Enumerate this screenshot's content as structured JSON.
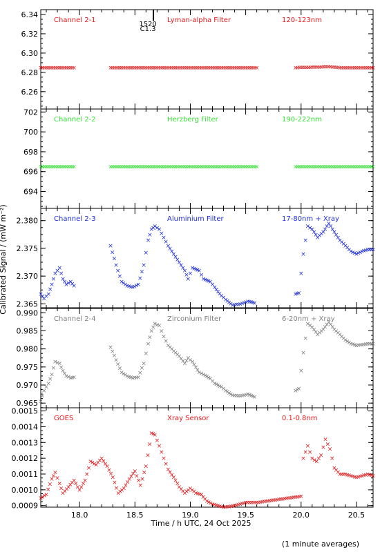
{
  "xlabel": "Time / h UTC, 24 Oct 2025",
  "ylabel": "Calibrated Signal / (mW m⁻²)",
  "footnote": "(1 minute averages)",
  "event_marker": {
    "x": 18.667,
    "label_top": "1520",
    "label_bottom": "C1.3"
  },
  "chart_data": [
    {
      "type": "scatter",
      "channel": "Channel 2-1",
      "filter": "Lyman-alpha Filter",
      "band": "120-123nm",
      "color": "#e31a1c",
      "xlim": [
        17.65,
        20.65
      ],
      "ylim": [
        6.242,
        6.345
      ],
      "yticks": [
        "6.26",
        "6.28",
        "6.30",
        "6.32",
        "6.34"
      ],
      "segments": [
        {
          "x": [
            17.65,
            17.95
          ],
          "y": [
            6.285,
            6.285
          ]
        },
        {
          "x": [
            18.28,
            19.6
          ],
          "y": [
            6.285,
            6.285
          ]
        },
        {
          "x": [
            19.95,
            20.25,
            20.35,
            20.65
          ],
          "y": [
            6.285,
            6.286,
            6.285,
            6.285
          ]
        }
      ]
    },
    {
      "type": "scatter",
      "channel": "Channel 2-2",
      "filter": "Herzberg Filter",
      "band": "190-222nm",
      "color": "#33dd33",
      "xlim": [
        17.65,
        20.65
      ],
      "ylim": [
        692.3,
        702.3
      ],
      "yticks": [
        "694",
        "696",
        "698",
        "700",
        "702"
      ],
      "segments": [
        {
          "x": [
            17.65,
            17.95
          ],
          "y": [
            696.5,
            696.5
          ]
        },
        {
          "x": [
            18.28,
            19.6
          ],
          "y": [
            696.5,
            696.5
          ]
        },
        {
          "x": [
            19.95,
            20.65
          ],
          "y": [
            696.5,
            696.5
          ]
        }
      ]
    },
    {
      "type": "scatter",
      "channel": "Channel 2-3",
      "filter": "Aluminium Filter",
      "band": "17-80nm + Xray",
      "color": "#1f2fd6",
      "xlim": [
        17.65,
        20.65
      ],
      "ylim": [
        2.3643,
        2.3822
      ],
      "yticks": [
        "2.365",
        "2.370",
        "2.375",
        "2.380"
      ],
      "segments": [
        {
          "x": [
            17.65,
            17.68,
            17.72,
            17.75,
            17.78,
            17.82,
            17.85,
            17.88,
            17.92,
            17.95
          ],
          "y": [
            2.3668,
            2.366,
            2.3668,
            2.3685,
            2.3705,
            2.3715,
            2.3695,
            2.3685,
            2.369,
            2.3683
          ]
        },
        {
          "x": [
            18.28,
            18.33,
            18.38,
            18.43,
            18.48,
            18.53,
            18.58,
            18.62,
            18.65,
            18.68,
            18.72,
            18.76,
            18.8,
            18.85,
            18.9,
            18.95,
            18.98,
            19.02,
            19.08,
            19.12,
            19.18,
            19.22,
            19.28,
            19.32,
            19.38,
            19.45,
            19.52,
            19.58
          ],
          "y": [
            2.3755,
            2.372,
            2.369,
            2.3683,
            2.368,
            2.3685,
            2.372,
            2.3765,
            2.3785,
            2.379,
            2.3785,
            2.377,
            2.3755,
            2.374,
            2.3725,
            2.371,
            2.3695,
            2.3715,
            2.371,
            2.3695,
            2.369,
            2.368,
            2.3665,
            2.3658,
            2.3648,
            2.365,
            2.3655,
            2.3652
          ]
        },
        {
          "x": [
            19.95,
            19.98,
            20.02,
            20.06,
            20.1,
            20.15,
            20.2,
            20.25,
            20.3,
            20.35,
            20.4,
            20.45,
            20.5,
            20.55,
            20.6,
            20.65
          ],
          "y": [
            2.3668,
            2.367,
            2.374,
            2.379,
            2.3785,
            2.377,
            2.378,
            2.3795,
            2.378,
            2.3765,
            2.3755,
            2.3745,
            2.374,
            2.3745,
            2.3748,
            2.3748
          ]
        }
      ]
    },
    {
      "type": "scatter",
      "channel": "Channel 2-4",
      "filter": "Zirconium Filter",
      "band": "6-20nm + Xray",
      "color": "#808080",
      "xlim": [
        17.65,
        20.65
      ],
      "ylim": [
        0.9637,
        0.9912
      ],
      "yticks": [
        "0.965",
        "0.970",
        "0.975",
        "0.980",
        "0.985",
        "0.990"
      ],
      "segments": [
        {
          "x": [
            17.65,
            17.68,
            17.72,
            17.75,
            17.78,
            17.82,
            17.85,
            17.88,
            17.92,
            17.95
          ],
          "y": [
            0.9655,
            0.9685,
            0.9705,
            0.973,
            0.9765,
            0.976,
            0.974,
            0.9725,
            0.972,
            0.9722
          ]
        },
        {
          "x": [
            18.28,
            18.33,
            18.38,
            18.43,
            18.48,
            18.53,
            18.58,
            18.62,
            18.65,
            18.68,
            18.72,
            18.76,
            18.8,
            18.85,
            18.9,
            18.95,
            18.98,
            19.02,
            19.08,
            19.12,
            19.18,
            19.22,
            19.28,
            19.32,
            19.38,
            19.45,
            19.52,
            19.58
          ],
          "y": [
            0.9805,
            0.977,
            0.9735,
            0.9725,
            0.972,
            0.9722,
            0.976,
            0.9815,
            0.985,
            0.987,
            0.9865,
            0.9835,
            0.981,
            0.9795,
            0.978,
            0.976,
            0.9775,
            0.9765,
            0.9735,
            0.973,
            0.9718,
            0.9705,
            0.9695,
            0.9685,
            0.9672,
            0.967,
            0.9675,
            0.9668
          ]
        },
        {
          "x": [
            19.95,
            19.98,
            20.02,
            20.06,
            20.1,
            20.15,
            20.2,
            20.25,
            20.3,
            20.35,
            20.4,
            20.45,
            20.5,
            20.55,
            20.6,
            20.65
          ],
          "y": [
            0.9685,
            0.969,
            0.979,
            0.987,
            0.986,
            0.984,
            0.9855,
            0.9875,
            0.9855,
            0.984,
            0.9825,
            0.9815,
            0.981,
            0.9812,
            0.9815,
            0.9815
          ]
        }
      ]
    },
    {
      "type": "scatter",
      "channel": "GOES",
      "filter": "Xray Sensor",
      "band": "0.1-0.8nm",
      "color": "#e31a1c",
      "xlim": [
        17.65,
        20.65
      ],
      "ylim": [
        0.00089,
        0.00152
      ],
      "yticks": [
        "0.0009",
        "0.0010",
        "0.0011",
        "0.0012",
        "0.0013",
        "0.0014",
        "0.0015"
      ],
      "segments": [
        {
          "x": [
            17.65,
            17.7,
            17.75,
            17.78,
            17.82,
            17.85,
            17.9,
            17.95,
            18.0,
            18.05,
            18.1,
            18.15,
            18.2,
            18.25,
            18.3,
            18.35,
            18.4,
            18.45,
            18.5,
            18.55,
            18.6,
            18.65,
            18.68,
            18.72,
            18.76,
            18.8,
            18.85,
            18.9,
            18.95,
            19.0,
            19.05,
            19.1,
            19.15,
            19.2,
            19.3,
            19.4,
            19.5,
            19.6,
            19.7,
            19.8,
            19.9,
            20.0
          ],
          "y": [
            0.00095,
            0.00097,
            0.00107,
            0.00111,
            0.00104,
            0.00098,
            0.00102,
            0.00106,
            0.001,
            0.00106,
            0.00118,
            0.00116,
            0.0012,
            0.00115,
            0.00108,
            0.00098,
            0.00101,
            0.00107,
            0.00112,
            0.00103,
            0.00115,
            0.00136,
            0.00135,
            0.00128,
            0.0012,
            0.00113,
            0.00108,
            0.00102,
            0.00098,
            0.00101,
            0.00098,
            0.00097,
            0.00093,
            0.00091,
            0.00089,
            0.0009,
            0.00092,
            0.00092,
            0.00093,
            0.00094,
            0.00095,
            0.00096
          ]
        },
        {
          "x": [
            20.02,
            20.06,
            20.1,
            20.14,
            20.18,
            20.22,
            20.26,
            20.3,
            20.35,
            20.4,
            20.45,
            20.5,
            20.55,
            20.6,
            20.65
          ],
          "y": [
            0.0012,
            0.00128,
            0.0012,
            0.00118,
            0.00122,
            0.00132,
            0.00126,
            0.00114,
            0.0011,
            0.0011,
            0.00109,
            0.00108,
            0.00109,
            0.0011,
            0.00109
          ]
        }
      ]
    }
  ],
  "xticks": [
    "18.0",
    "18.5",
    "19.0",
    "19.5",
    "20.0",
    "20.5"
  ]
}
